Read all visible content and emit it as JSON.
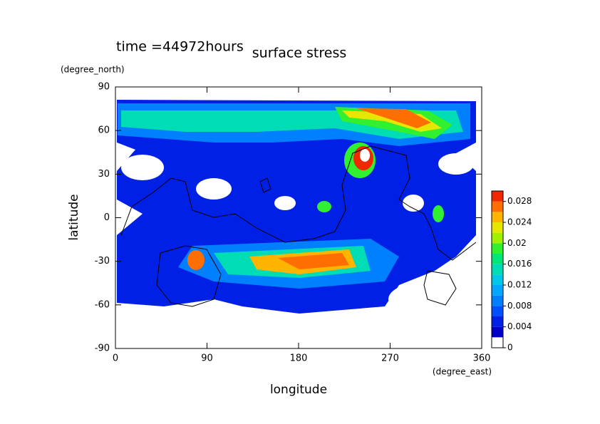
{
  "chart_data": {
    "type": "contour",
    "title": "surface stress",
    "subtitle": "time =44972hours",
    "x_label": "longitude",
    "y_label": "latitude",
    "x_unit": "(degree_east)",
    "y_unit": "(degree_north)",
    "xlim": [
      0,
      360
    ],
    "xticks": [
      0,
      90,
      180,
      270,
      360
    ],
    "ylim": [
      -90,
      90
    ],
    "yticks": [
      -90,
      -60,
      -30,
      0,
      30,
      60,
      90
    ],
    "clim": [
      0,
      0.03
    ],
    "cticks": [
      0,
      0.004,
      0.008,
      0.012,
      0.016,
      0.02,
      0.024,
      0.028
    ],
    "levels": [
      0,
      0.002,
      0.004,
      0.006,
      0.008,
      0.01,
      0.012,
      0.014,
      0.016,
      0.018,
      0.02,
      0.022,
      0.024,
      0.026,
      0.028,
      0.03
    ],
    "colors": [
      "#ffffff",
      "#0000c8",
      "#0020e6",
      "#0050ff",
      "#0080ff",
      "#00a8ff",
      "#00c8e6",
      "#00dcb4",
      "#00e678",
      "#30f030",
      "#a0f000",
      "#e6e600",
      "#ffb400",
      "#ff6e00",
      "#f02800"
    ]
  }
}
